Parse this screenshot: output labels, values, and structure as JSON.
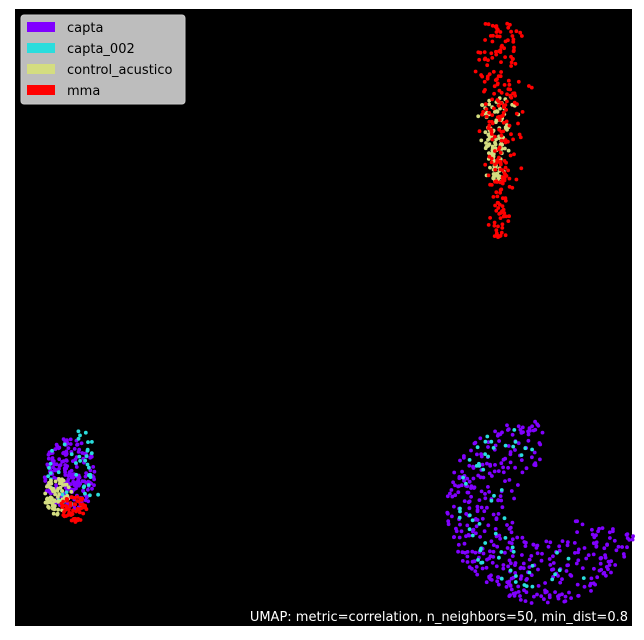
{
  "chart_data": {
    "type": "scatter",
    "title": "",
    "xlabel": "",
    "ylabel": "",
    "grid": false,
    "axes_visible": false,
    "background": "#000000",
    "legend_position": "top-left",
    "annotation": "UMAP: metric=correlation, n_neighbors=50, min_dist=0.8",
    "series": [
      {
        "name": "capta",
        "color": "#8000ff",
        "clusters": [
          {
            "shape": "ellipse",
            "cx": 0.09,
            "cy": 0.245,
            "rx": 0.044,
            "ry": 0.06,
            "n": 200
          },
          {
            "shape": "arc",
            "cx": 0.855,
            "cy": 0.19,
            "r_outer": 0.155,
            "r_inner": 0.045,
            "start_deg": 90,
            "end_deg": 345,
            "n": 430
          }
        ]
      },
      {
        "name": "capta_002",
        "color": "#2adddd",
        "clusters": [
          {
            "shape": "ellipse",
            "cx": 0.095,
            "cy": 0.25,
            "rx": 0.05,
            "ry": 0.07,
            "n": 45
          },
          {
            "shape": "arc",
            "cx": 0.855,
            "cy": 0.2,
            "r_outer": 0.14,
            "r_inner": 0.06,
            "start_deg": 100,
            "end_deg": 300,
            "n": 60
          }
        ]
      },
      {
        "name": "control_acustico",
        "color": "#d4dd80",
        "clusters": [
          {
            "shape": "ellipse",
            "cx": 0.07,
            "cy": 0.21,
            "rx": 0.022,
            "ry": 0.03,
            "n": 70
          },
          {
            "shape": "band",
            "x_center": 0.778,
            "y_from": 0.72,
            "y_to": 0.86,
            "width": 0.04,
            "n": 120
          }
        ]
      },
      {
        "name": "mma",
        "color": "#ff0000",
        "clusters": [
          {
            "shape": "ellipse",
            "cx": 0.095,
            "cy": 0.19,
            "rx": 0.022,
            "ry": 0.022,
            "n": 60
          },
          {
            "shape": "band",
            "x_center": 0.785,
            "y_from": 0.63,
            "y_to": 0.98,
            "width": 0.05,
            "n": 240
          }
        ]
      }
    ]
  }
}
